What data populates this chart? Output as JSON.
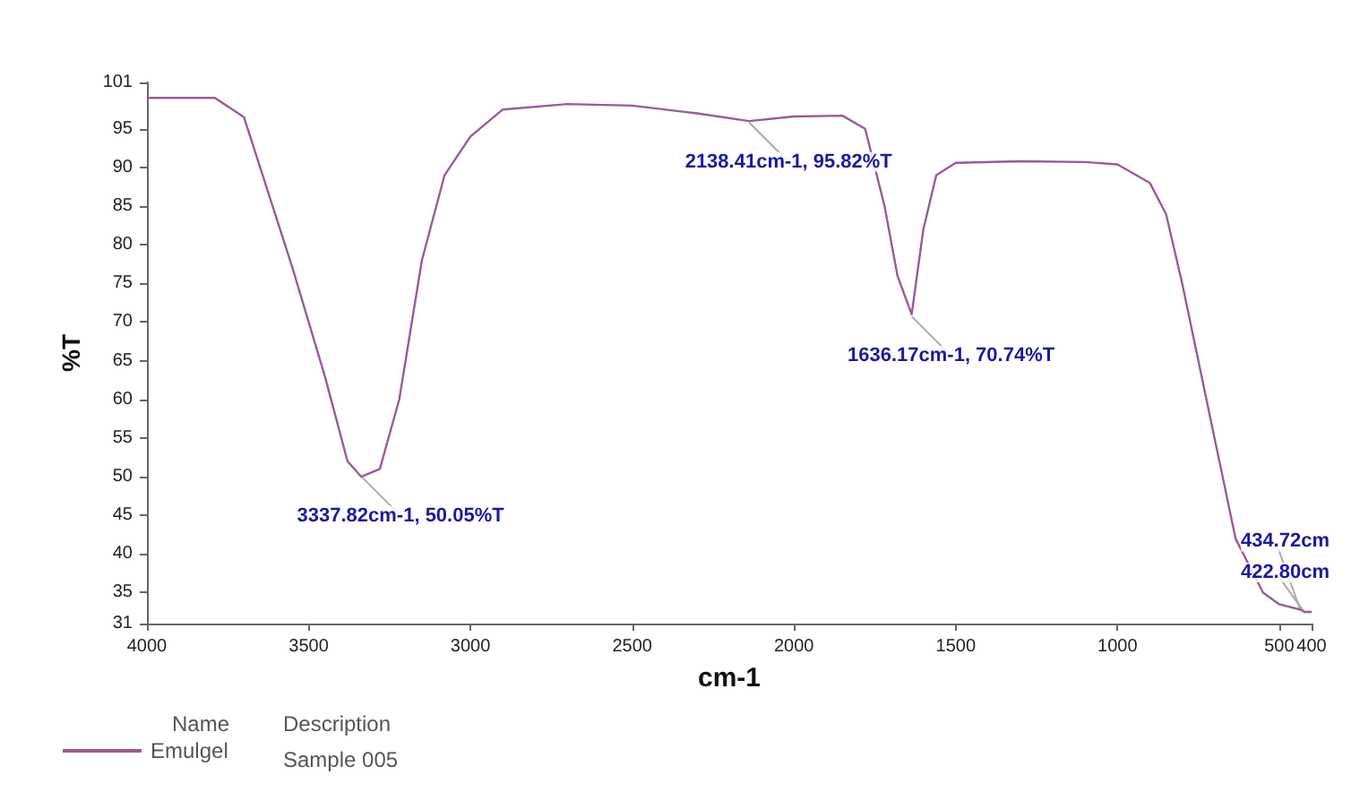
{
  "chart_data": {
    "type": "line",
    "xlabel": "cm-1",
    "ylabel": "%T",
    "x": [
      4000,
      3790,
      3700,
      3650,
      3550,
      3450,
      3380,
      3337.82,
      3280,
      3220,
      3150,
      3080,
      3000,
      2900,
      2700,
      2500,
      2300,
      2138.41,
      2000,
      1850,
      1780,
      1720,
      1680,
      1636.17,
      1600,
      1560,
      1500,
      1300,
      1100,
      1000,
      900,
      850,
      800,
      700,
      635,
      550,
      500,
      434.72,
      422.8,
      400
    ],
    "series": [
      {
        "name": "Emulgel",
        "color": "#9a5a9a",
        "values": [
          99,
          99,
          96.5,
          90,
          77,
          63,
          52,
          50,
          51,
          60,
          78,
          89,
          94,
          97.5,
          98.2,
          98,
          97,
          96,
          96.6,
          96.7,
          95,
          85,
          76,
          71,
          82,
          89,
          90.6,
          90.8,
          90.7,
          90.4,
          88,
          84,
          75,
          55,
          42,
          35,
          33.5,
          32.8,
          32.5,
          32.5
        ]
      }
    ],
    "xlim": [
      4000,
      400
    ],
    "xticks": [
      4000,
      3500,
      3000,
      2500,
      2000,
      1500,
      1000,
      500,
      400
    ],
    "ylim": [
      31,
      101
    ],
    "yticks": [
      31,
      35,
      40,
      45,
      50,
      55,
      60,
      65,
      70,
      75,
      80,
      85,
      90,
      95,
      101
    ],
    "grid": false,
    "legend": "bottom left",
    "marker": "none",
    "line_style": "solid",
    "annotations": [
      {
        "text": "3337.82cm-1, 50.05%T",
        "x": 3337.82,
        "y": 50.05
      },
      {
        "text": "2138.41cm-1, 95.82%T",
        "x": 2138.41,
        "y": 95.82
      },
      {
        "text": "1636.17cm-1, 70.74%T",
        "x": 1636.17,
        "y": 70.74
      },
      {
        "text": "434.72cm",
        "x": 434.72,
        "y": 32.8
      },
      {
        "text": "422.80cm",
        "x": 422.8,
        "y": 32.5
      },
      "Name",
      "Description",
      "Sample 005"
    ]
  }
}
